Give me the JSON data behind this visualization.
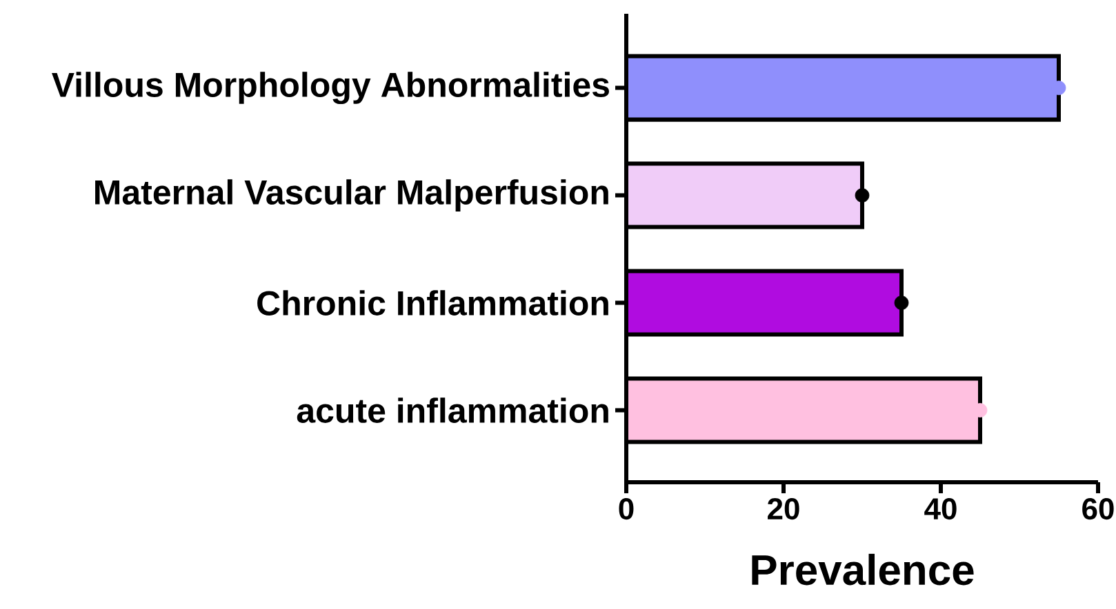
{
  "chart_data": {
    "type": "bar",
    "orientation": "horizontal",
    "xlabel": "Prevalence",
    "categories": [
      "Villous Morphology Abnormalities",
      "Maternal Vascular Malperfusion",
      "Chronic Inflammation",
      "acute inflammation"
    ],
    "series": [
      {
        "type": "bar",
        "colors": [
          "#8f8ffc",
          "#f0ccf8",
          "#b00ce0",
          "#ffc0e0"
        ],
        "values": [
          55,
          30,
          35,
          45
        ]
      },
      {
        "type": "scatter",
        "marker": "circle",
        "colors": [
          "#8f8ffc",
          "#000000",
          "#000000",
          "#ffc0e0"
        ],
        "values": [
          55,
          30,
          35,
          45
        ]
      }
    ],
    "xlim": [
      0,
      60
    ],
    "xticks": [
      0,
      20,
      40,
      60
    ]
  }
}
